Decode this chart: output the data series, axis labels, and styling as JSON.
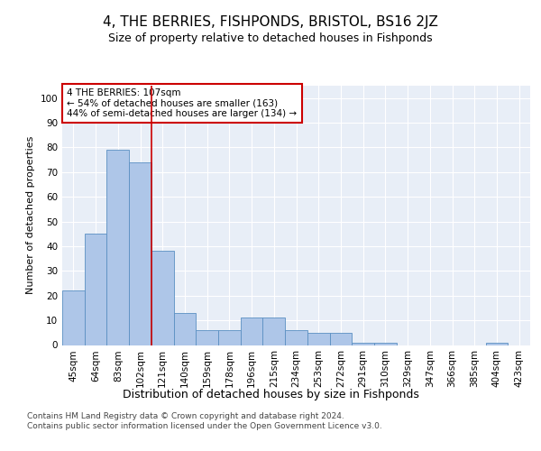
{
  "title": "4, THE BERRIES, FISHPONDS, BRISTOL, BS16 2JZ",
  "subtitle": "Size of property relative to detached houses in Fishponds",
  "xlabel": "Distribution of detached houses by size in Fishponds",
  "ylabel": "Number of detached properties",
  "bins": [
    "45sqm",
    "64sqm",
    "83sqm",
    "102sqm",
    "121sqm",
    "140sqm",
    "159sqm",
    "178sqm",
    "196sqm",
    "215sqm",
    "234sqm",
    "253sqm",
    "272sqm",
    "291sqm",
    "310sqm",
    "329sqm",
    "347sqm",
    "366sqm",
    "385sqm",
    "404sqm",
    "423sqm"
  ],
  "values": [
    22,
    45,
    79,
    74,
    38,
    13,
    6,
    6,
    11,
    11,
    6,
    5,
    5,
    1,
    1,
    0,
    0,
    0,
    0,
    1,
    0
  ],
  "bar_color": "#aec6e8",
  "bar_edge_color": "#5a8fc2",
  "vline_x": 3.5,
  "vline_color": "#cc0000",
  "annotation_text": "4 THE BERRIES: 107sqm\n← 54% of detached houses are smaller (163)\n44% of semi-detached houses are larger (134) →",
  "annotation_box_color": "#ffffff",
  "annotation_box_edge_color": "#cc0000",
  "footer": "Contains HM Land Registry data © Crown copyright and database right 2024.\nContains public sector information licensed under the Open Government Licence v3.0.",
  "ylim": [
    0,
    105
  ],
  "yticks": [
    0,
    10,
    20,
    30,
    40,
    50,
    60,
    70,
    80,
    90,
    100
  ],
  "bg_color": "#e8eef7",
  "title_fontsize": 11,
  "subtitle_fontsize": 9,
  "xlabel_fontsize": 9,
  "ylabel_fontsize": 8,
  "tick_fontsize": 7.5,
  "footer_fontsize": 6.5,
  "annotation_fontsize": 7.5
}
